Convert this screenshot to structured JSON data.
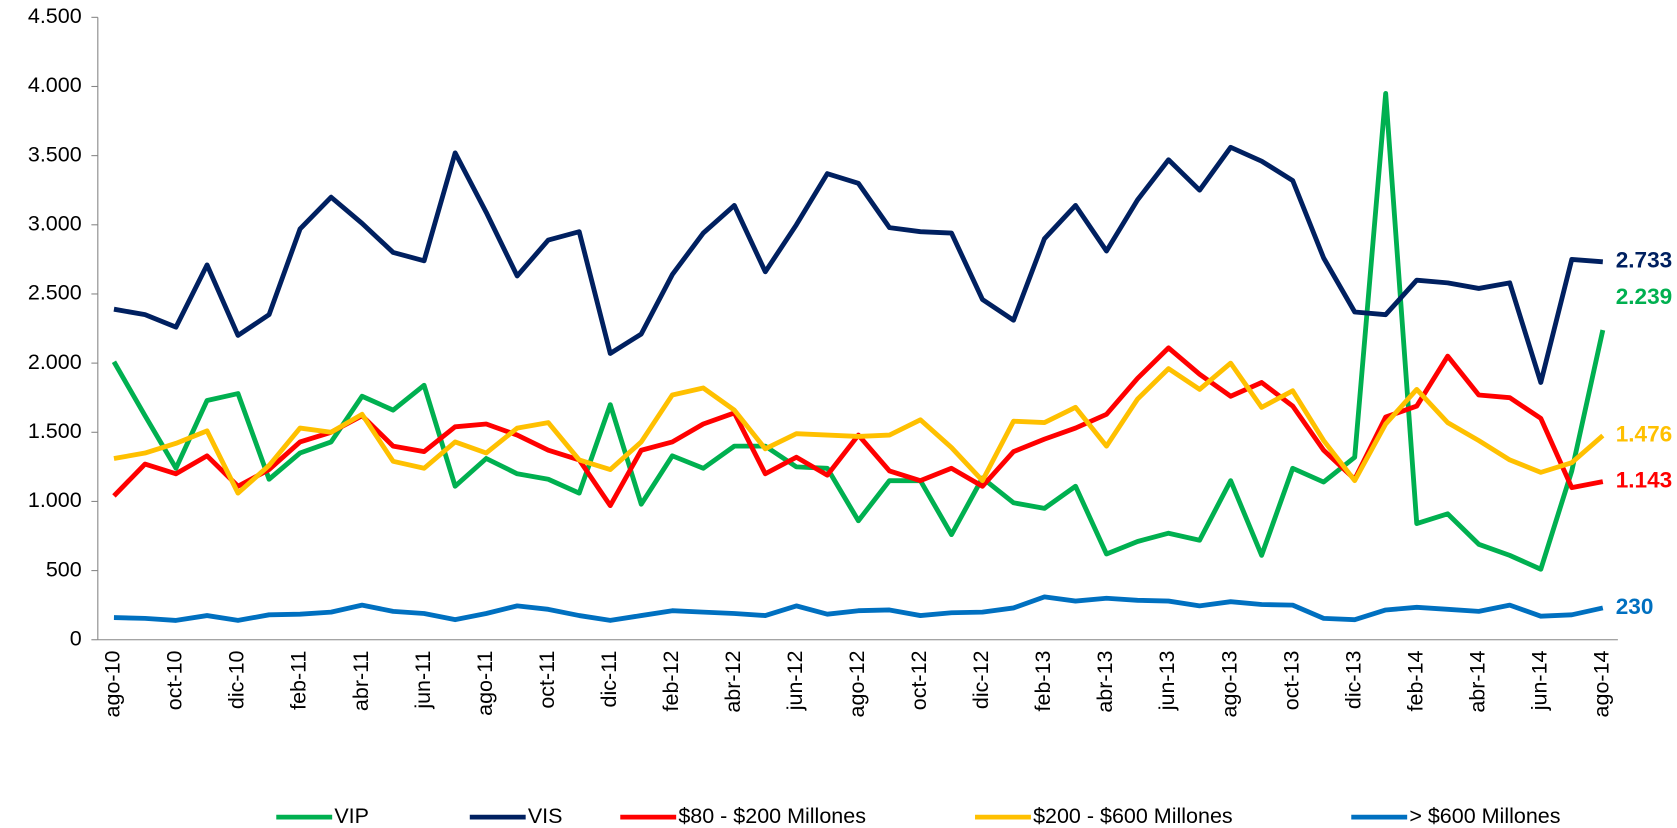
{
  "chart_data": {
    "type": "line",
    "categories": [
      "ago-10",
      null,
      "oct-10",
      null,
      "dic-10",
      null,
      "feb-11",
      null,
      "abr-11",
      null,
      "jun-11",
      null,
      "ago-11",
      null,
      "oct-11",
      null,
      "dic-11",
      null,
      "feb-12",
      null,
      "abr-12",
      null,
      "jun-12",
      null,
      "ago-12",
      null,
      "oct-12",
      null,
      "dic-12",
      null,
      "feb-13",
      null,
      "abr-13",
      null,
      "jun-13",
      null,
      "ago-13",
      null,
      "oct-13",
      null,
      "dic-13",
      null,
      "feb-14",
      null,
      "abr-14",
      null,
      "jun-14",
      null,
      "ago-14"
    ],
    "series": [
      {
        "name": "VIP",
        "color": "#00b050",
        "values": [
          2010,
          1620,
          1240,
          1730,
          1780,
          1160,
          1350,
          1430,
          1760,
          1660,
          1840,
          1110,
          1310,
          1200,
          1160,
          1060,
          1700,
          980,
          1330,
          1240,
          1400,
          1400,
          1250,
          1240,
          860,
          1150,
          1150,
          760,
          1170,
          990,
          950,
          1110,
          620,
          710,
          770,
          720,
          1150,
          610,
          1240,
          1140,
          1320,
          3950,
          840,
          910,
          690,
          610,
          510,
          1220,
          2239
        ],
        "end_label": "2.239"
      },
      {
        "name": "VIS",
        "color": "#002060",
        "values": [
          2390,
          2350,
          2260,
          2710,
          2200,
          2350,
          2970,
          3200,
          3010,
          2800,
          2740,
          3520,
          3090,
          2630,
          2890,
          2950,
          2070,
          2210,
          2640,
          2940,
          3140,
          2660,
          3000,
          3370,
          3300,
          2980,
          2950,
          2940,
          2460,
          2310,
          2900,
          3140,
          2810,
          3180,
          3470,
          3250,
          3560,
          3460,
          3320,
          2760,
          2370,
          2350,
          2600,
          2580,
          2540,
          2580,
          1860,
          2750,
          2733
        ],
        "end_label": "2.733"
      },
      {
        "name": "$80 - $200 Millones",
        "color": "#ff0000",
        "values": [
          1040,
          1270,
          1200,
          1330,
          1110,
          1230,
          1430,
          1500,
          1620,
          1400,
          1360,
          1540,
          1560,
          1480,
          1370,
          1300,
          970,
          1370,
          1430,
          1560,
          1640,
          1200,
          1320,
          1190,
          1480,
          1220,
          1150,
          1240,
          1110,
          1360,
          1450,
          1530,
          1630,
          1890,
          2110,
          1920,
          1760,
          1860,
          1690,
          1370,
          1160,
          1610,
          1690,
          2050,
          1770,
          1750,
          1600,
          1100,
          1143
        ],
        "end_label": "1.143"
      },
      {
        "name": "$200 - $600 Millones",
        "color": "#ffc000",
        "values": [
          1310,
          1350,
          1420,
          1510,
          1060,
          1260,
          1530,
          1500,
          1630,
          1290,
          1240,
          1430,
          1350,
          1530,
          1570,
          1300,
          1230,
          1430,
          1770,
          1820,
          1660,
          1380,
          1490,
          1480,
          1470,
          1480,
          1590,
          1390,
          1150,
          1580,
          1570,
          1680,
          1400,
          1740,
          1960,
          1810,
          2000,
          1680,
          1800,
          1440,
          1150,
          1560,
          1810,
          1570,
          1440,
          1300,
          1210,
          1280,
          1476
        ],
        "end_label": "1.476"
      },
      {
        "name": "> $600 Millones",
        "color": "#0070c0",
        "values": [
          160,
          155,
          140,
          175,
          140,
          180,
          185,
          200,
          250,
          205,
          190,
          145,
          190,
          245,
          220,
          175,
          140,
          175,
          210,
          200,
          190,
          175,
          245,
          185,
          210,
          215,
          175,
          195,
          200,
          230,
          310,
          280,
          300,
          285,
          280,
          245,
          275,
          255,
          250,
          155,
          145,
          215,
          235,
          220,
          205,
          250,
          170,
          180,
          230
        ],
        "end_label": "230"
      }
    ],
    "ylim": [
      0,
      4500
    ],
    "yticks": [
      0,
      500,
      {
        "value": 1000,
        "label": "1.000"
      },
      {
        "value": 1500,
        "label": "1.500"
      },
      {
        "value": 2000,
        "label": "2.000"
      },
      {
        "value": 2500,
        "label": "2.500"
      },
      {
        "value": 3000,
        "label": "3.000"
      },
      {
        "value": 3500,
        "label": "3.500"
      },
      {
        "value": 4000,
        "label": "4.000"
      },
      {
        "value": 4500,
        "label": "4.500"
      }
    ],
    "grid": false,
    "legend": "bottom"
  }
}
